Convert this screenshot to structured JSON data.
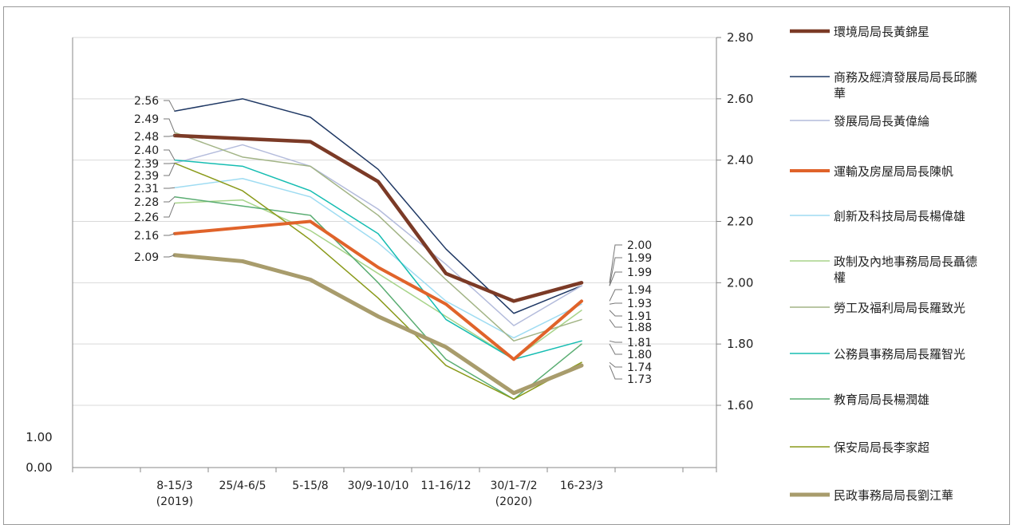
{
  "chart_data": {
    "type": "line",
    "categories": [
      [
        "8-15/3",
        "(2019)"
      ],
      [
        "25/4-6/5"
      ],
      [
        "5-15/8"
      ],
      [
        "30/9-10/10"
      ],
      [
        "11-16/12"
      ],
      [
        "30/1-7/2",
        "(2020)"
      ],
      [
        "16-23/3"
      ]
    ],
    "y_axis_right": {
      "min": 1.6,
      "max": 2.8,
      "ticks": [
        "1.60",
        "1.80",
        "2.00",
        "2.20",
        "2.40",
        "2.60",
        "2.80"
      ],
      "grid": true
    },
    "y_axis_left_ticks": [
      "0.00",
      "1.00"
    ],
    "series": [
      {
        "name": "環境局局長黃錦星",
        "color": "#7b3a26",
        "width": 4.5,
        "values": [
          2.48,
          2.47,
          2.46,
          2.33,
          2.03,
          1.94,
          2.0
        ]
      },
      {
        "name": "商務及經濟發展局局長邱騰華",
        "color": "#1f3864",
        "width": 1.5,
        "values": [
          2.56,
          2.6,
          2.54,
          2.37,
          2.11,
          1.9,
          1.99
        ]
      },
      {
        "name": "發展局局長黃偉綸",
        "color": "#b4bcdc",
        "width": 1.5,
        "values": [
          2.39,
          2.45,
          2.38,
          2.24,
          2.06,
          1.86,
          1.99
        ]
      },
      {
        "name": "運輸及房屋局局長陳帆",
        "color": "#e0632a",
        "width": 4,
        "values": [
          2.16,
          2.18,
          2.2,
          2.05,
          1.93,
          1.75,
          1.94
        ]
      },
      {
        "name": "創新及科技局局長楊偉雄",
        "color": "#9fdcf2",
        "width": 1.5,
        "values": [
          2.31,
          2.34,
          2.28,
          2.13,
          1.94,
          1.82,
          1.93
        ]
      },
      {
        "name": "政制及內地事務局局長聶德權",
        "color": "#a8d48a",
        "width": 1.5,
        "values": [
          2.26,
          2.27,
          2.17,
          2.03,
          1.89,
          1.75,
          1.91
        ]
      },
      {
        "name": "勞工及福利局局長羅致光",
        "color": "#a2b486",
        "width": 1.5,
        "values": [
          2.49,
          2.41,
          2.38,
          2.22,
          2.01,
          1.81,
          1.88
        ]
      },
      {
        "name": "公務員事務局局長羅智光",
        "color": "#16bdb2",
        "width": 1.5,
        "values": [
          2.4,
          2.38,
          2.3,
          2.16,
          1.88,
          1.75,
          1.81
        ]
      },
      {
        "name": "教育局局長楊潤雄",
        "color": "#5aad72",
        "width": 1.5,
        "values": [
          2.28,
          2.25,
          2.22,
          2.0,
          1.75,
          1.62,
          1.8
        ]
      },
      {
        "name": "保安局局長李家超",
        "color": "#8a9a1a",
        "width": 1.5,
        "values": [
          2.39,
          2.3,
          2.14,
          1.95,
          1.73,
          1.62,
          1.74
        ]
      },
      {
        "name": "民政事務局局長劉江華",
        "color": "#a89c6c",
        "width": 5,
        "values": [
          2.09,
          2.07,
          2.01,
          1.89,
          1.79,
          1.64,
          1.73
        ]
      }
    ],
    "data_labels_left": [
      "2.56",
      "2.49",
      "2.48",
      "2.40",
      "2.39",
      "2.39",
      "2.31",
      "2.28",
      "2.26",
      "2.16",
      "2.09"
    ],
    "data_labels_right": [
      "2.00",
      "1.99",
      "1.99",
      "1.94",
      "1.93",
      "1.91",
      "1.88",
      "1.81",
      "1.80",
      "1.74",
      "1.73"
    ],
    "legend_position": "right"
  }
}
